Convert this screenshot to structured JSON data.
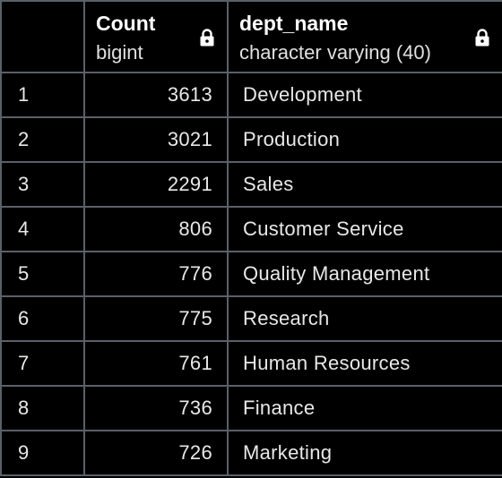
{
  "columns": [
    {
      "name": "Count",
      "type": "bigint"
    },
    {
      "name": "dept_name",
      "type": "character varying (40)"
    }
  ],
  "rows": [
    {
      "idx": "1",
      "count": "3613",
      "dept": "Development"
    },
    {
      "idx": "2",
      "count": "3021",
      "dept": "Production"
    },
    {
      "idx": "3",
      "count": "2291",
      "dept": "Sales"
    },
    {
      "idx": "4",
      "count": "806",
      "dept": "Customer Service"
    },
    {
      "idx": "5",
      "count": "776",
      "dept": "Quality Management"
    },
    {
      "idx": "6",
      "count": "775",
      "dept": "Research"
    },
    {
      "idx": "7",
      "count": "761",
      "dept": "Human Resources"
    },
    {
      "idx": "8",
      "count": "736",
      "dept": "Finance"
    },
    {
      "idx": "9",
      "count": "726",
      "dept": "Marketing"
    }
  ],
  "icons": {
    "column_lock": "lock-icon"
  },
  "colors": {
    "background": "#000000",
    "grid_line": "#5a6068",
    "text": "#e8e8e8"
  }
}
